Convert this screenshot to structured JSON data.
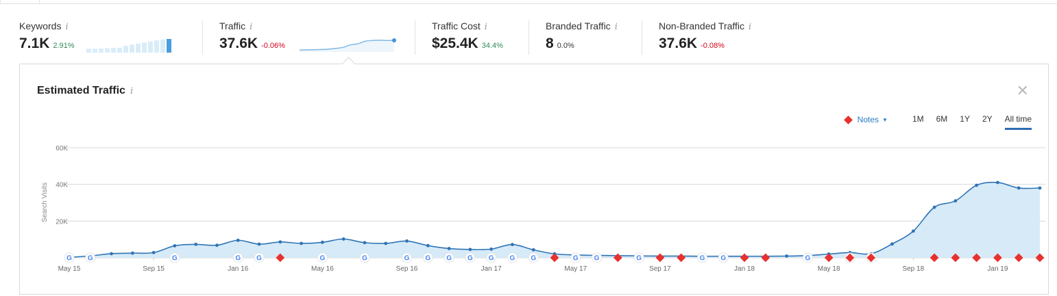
{
  "metrics": [
    {
      "label": "Keywords",
      "value": "7.1K",
      "delta": "2.91%",
      "tone": "pos"
    },
    {
      "label": "Traffic",
      "value": "37.6K",
      "delta": "-0.06%",
      "tone": "neg"
    },
    {
      "label": "Traffic Cost",
      "value": "$25.4K",
      "delta": "34.4%",
      "tone": "pos"
    },
    {
      "label": "Branded Traffic",
      "value": "8",
      "delta": "0.0%",
      "tone": "neu"
    },
    {
      "label": "Non-Branded Traffic",
      "value": "37.6K",
      "delta": "-0.08%",
      "tone": "neg"
    }
  ],
  "info_glyph": "i",
  "panel": {
    "title": "Estimated Traffic",
    "close_glyph": "✕",
    "notes_label": "Notes",
    "ranges": [
      "1M",
      "6M",
      "1Y",
      "2Y",
      "All time"
    ],
    "active_range": "All time"
  },
  "colors": {
    "line": "#2f74b5",
    "area": "#d6eaf8",
    "note": "#e8312f",
    "sparkbar": "#d9ecf9",
    "sparkbar_active": "#4a9de0"
  },
  "keywords_spark": [
    0.28,
    0.28,
    0.3,
    0.32,
    0.34,
    0.36,
    0.5,
    0.58,
    0.66,
    0.74,
    0.82,
    0.9,
    0.95,
    1.0
  ],
  "traffic_spark": [
    0.05,
    0.07,
    0.08,
    0.1,
    0.13,
    0.2,
    0.3,
    0.52,
    0.62,
    0.85,
    0.92,
    0.95,
    0.92,
    0.94
  ],
  "chart_data": {
    "type": "area",
    "ylabel": "Search Visits",
    "y_ticks": [
      "60K",
      "40K",
      "20K"
    ],
    "y_tick_values": [
      60000,
      40000,
      20000
    ],
    "ylim": [
      0,
      60000
    ],
    "x_tick_labels": [
      "May 15",
      "Sep 15",
      "Jan 16",
      "May 16",
      "Sep 16",
      "Jan 17",
      "May 17",
      "Sep 17",
      "Jan 18",
      "May 18",
      "Sep 18",
      "Jan 19"
    ],
    "x_tick_months": [
      0,
      4,
      8,
      12,
      16,
      20,
      24,
      28,
      32,
      36,
      40,
      44
    ],
    "grid": true,
    "x": [
      0,
      1,
      2,
      3,
      4,
      5,
      6,
      7,
      8,
      9,
      10,
      11,
      12,
      13,
      14,
      15,
      16,
      17,
      18,
      19,
      20,
      21,
      22,
      23,
      24,
      25,
      26,
      27,
      28,
      29,
      30,
      31,
      32,
      33,
      34,
      35,
      36,
      37,
      38,
      39,
      40,
      41,
      42,
      43,
      44,
      45,
      46
    ],
    "values": [
      200,
      1000,
      2200,
      2500,
      2800,
      6500,
      7300,
      6800,
      9500,
      7400,
      8600,
      7800,
      8400,
      10200,
      8200,
      7800,
      9100,
      6600,
      5000,
      4500,
      4700,
      7200,
      4300,
      2100,
      1500,
      1300,
      1100,
      1000,
      900,
      900,
      800,
      800,
      800,
      800,
      900,
      1200,
      2000,
      2800,
      2200,
      7500,
      14500,
      27500,
      31000,
      39500,
      41000,
      38000,
      38000
    ],
    "google_updates": [
      0,
      1,
      5,
      8,
      9,
      12,
      14,
      16,
      17,
      18,
      19,
      20,
      21,
      22,
      24,
      25,
      27,
      30,
      31,
      35,
      37,
      38
    ],
    "notes": [
      10,
      23,
      26,
      28,
      29,
      32,
      33,
      36,
      37,
      38,
      41,
      42,
      43,
      44,
      45,
      46
    ]
  }
}
